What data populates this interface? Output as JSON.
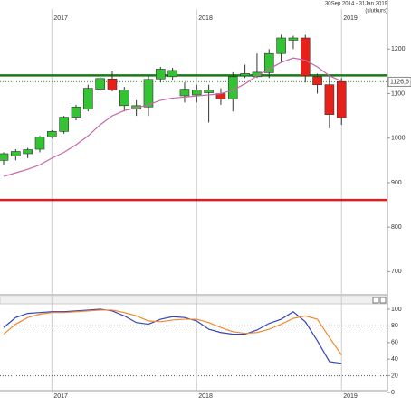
{
  "header": {
    "range": "30Sep 2014 - 31Jan 2019",
    "mode": "(slutkurs)"
  },
  "chart_data": [
    {
      "type": "candlestick",
      "categories": [
        null,
        null,
        null,
        null,
        null,
        null,
        null,
        null,
        null,
        null,
        null,
        null,
        null,
        null,
        null,
        null,
        null,
        null,
        null,
        null,
        null,
        null,
        null,
        null,
        null,
        null,
        null,
        null,
        null
      ],
      "xticks": [
        {
          "value": 4,
          "label": "2017"
        },
        {
          "value": 16,
          "label": "2018"
        },
        {
          "value": 28,
          "label": "2019"
        }
      ],
      "open": [
        950,
        960,
        965,
        975,
        1003,
        1015,
        1047,
        1065,
        1110,
        1133,
        1073,
        1065,
        1070,
        1133,
        1138,
        1095,
        1097,
        1102,
        1100,
        1088,
        1140,
        1138,
        1147,
        1190,
        1220,
        1225,
        1138,
        1120,
        1127
      ],
      "high": [
        968,
        975,
        978,
        1005,
        1018,
        1050,
        1075,
        1120,
        1138,
        1150,
        1115,
        1085,
        1140,
        1160,
        1158,
        1125,
        1120,
        1120,
        1112,
        1148,
        1165,
        1190,
        1200,
        1232,
        1230,
        1232,
        1145,
        1140,
        1135
      ],
      "low": [
        940,
        950,
        955,
        968,
        1000,
        1010,
        1040,
        1060,
        1105,
        1105,
        1060,
        1050,
        1050,
        1125,
        1130,
        1080,
        1080,
        1035,
        1075,
        1060,
        1135,
        1135,
        1135,
        1170,
        1200,
        1125,
        1100,
        1022,
        1030
      ],
      "close": [
        965,
        970,
        974,
        1002,
        1015,
        1047,
        1070,
        1112,
        1134,
        1108,
        1108,
        1073,
        1132,
        1155,
        1152,
        1110,
        1108,
        1108,
        1088,
        1138,
        1145,
        1148,
        1190,
        1225,
        1225,
        1140,
        1120,
        1053,
        1046
      ],
      "up_color": "#33c333",
      "down_color": "#e8201a",
      "series": [
        {
          "name": null,
          "color": "#c868a8",
          "values": [
            914,
            922,
            930,
            940,
            955,
            968,
            985,
            1005,
            1030,
            1050,
            1062,
            1068,
            1075,
            1085,
            1090,
            1092,
            1095,
            1097,
            1100,
            1108,
            1122,
            1140,
            1155,
            1170,
            1180,
            1175,
            1160,
            1140,
            1128
          ]
        }
      ],
      "hlines": [
        {
          "value": 1141,
          "color": "#1a7a1a"
        },
        {
          "value": 861,
          "color": "#d42020"
        }
      ],
      "last": {
        "value": 1126.6,
        "label": "1126,6",
        "color": "#2a9a2a"
      },
      "ylim": [
        650,
        1290
      ],
      "yticks": [
        700,
        800,
        900,
        1000,
        1100,
        1200
      ]
    },
    {
      "type": "line",
      "series": [
        {
          "name": null,
          "color": "#3344bb",
          "values": [
            78,
            90,
            95,
            96,
            97,
            97,
            98,
            99,
            100,
            98,
            92,
            84,
            82,
            88,
            91,
            90,
            86,
            76,
            72,
            70,
            70,
            75,
            83,
            88,
            97,
            85,
            62,
            37,
            35
          ]
        },
        {
          "name": null,
          "color": "#f08a30",
          "values": [
            70,
            82,
            90,
            94,
            96,
            96,
            97,
            98,
            99,
            99,
            96,
            92,
            86,
            85,
            87,
            88,
            88,
            84,
            78,
            73,
            71,
            72,
            76,
            82,
            89,
            92,
            88,
            66,
            45
          ]
        }
      ],
      "ylim": [
        0,
        100
      ],
      "yticks": [
        0,
        20,
        40,
        60,
        80,
        100
      ],
      "levels": [
        80,
        20
      ]
    }
  ]
}
